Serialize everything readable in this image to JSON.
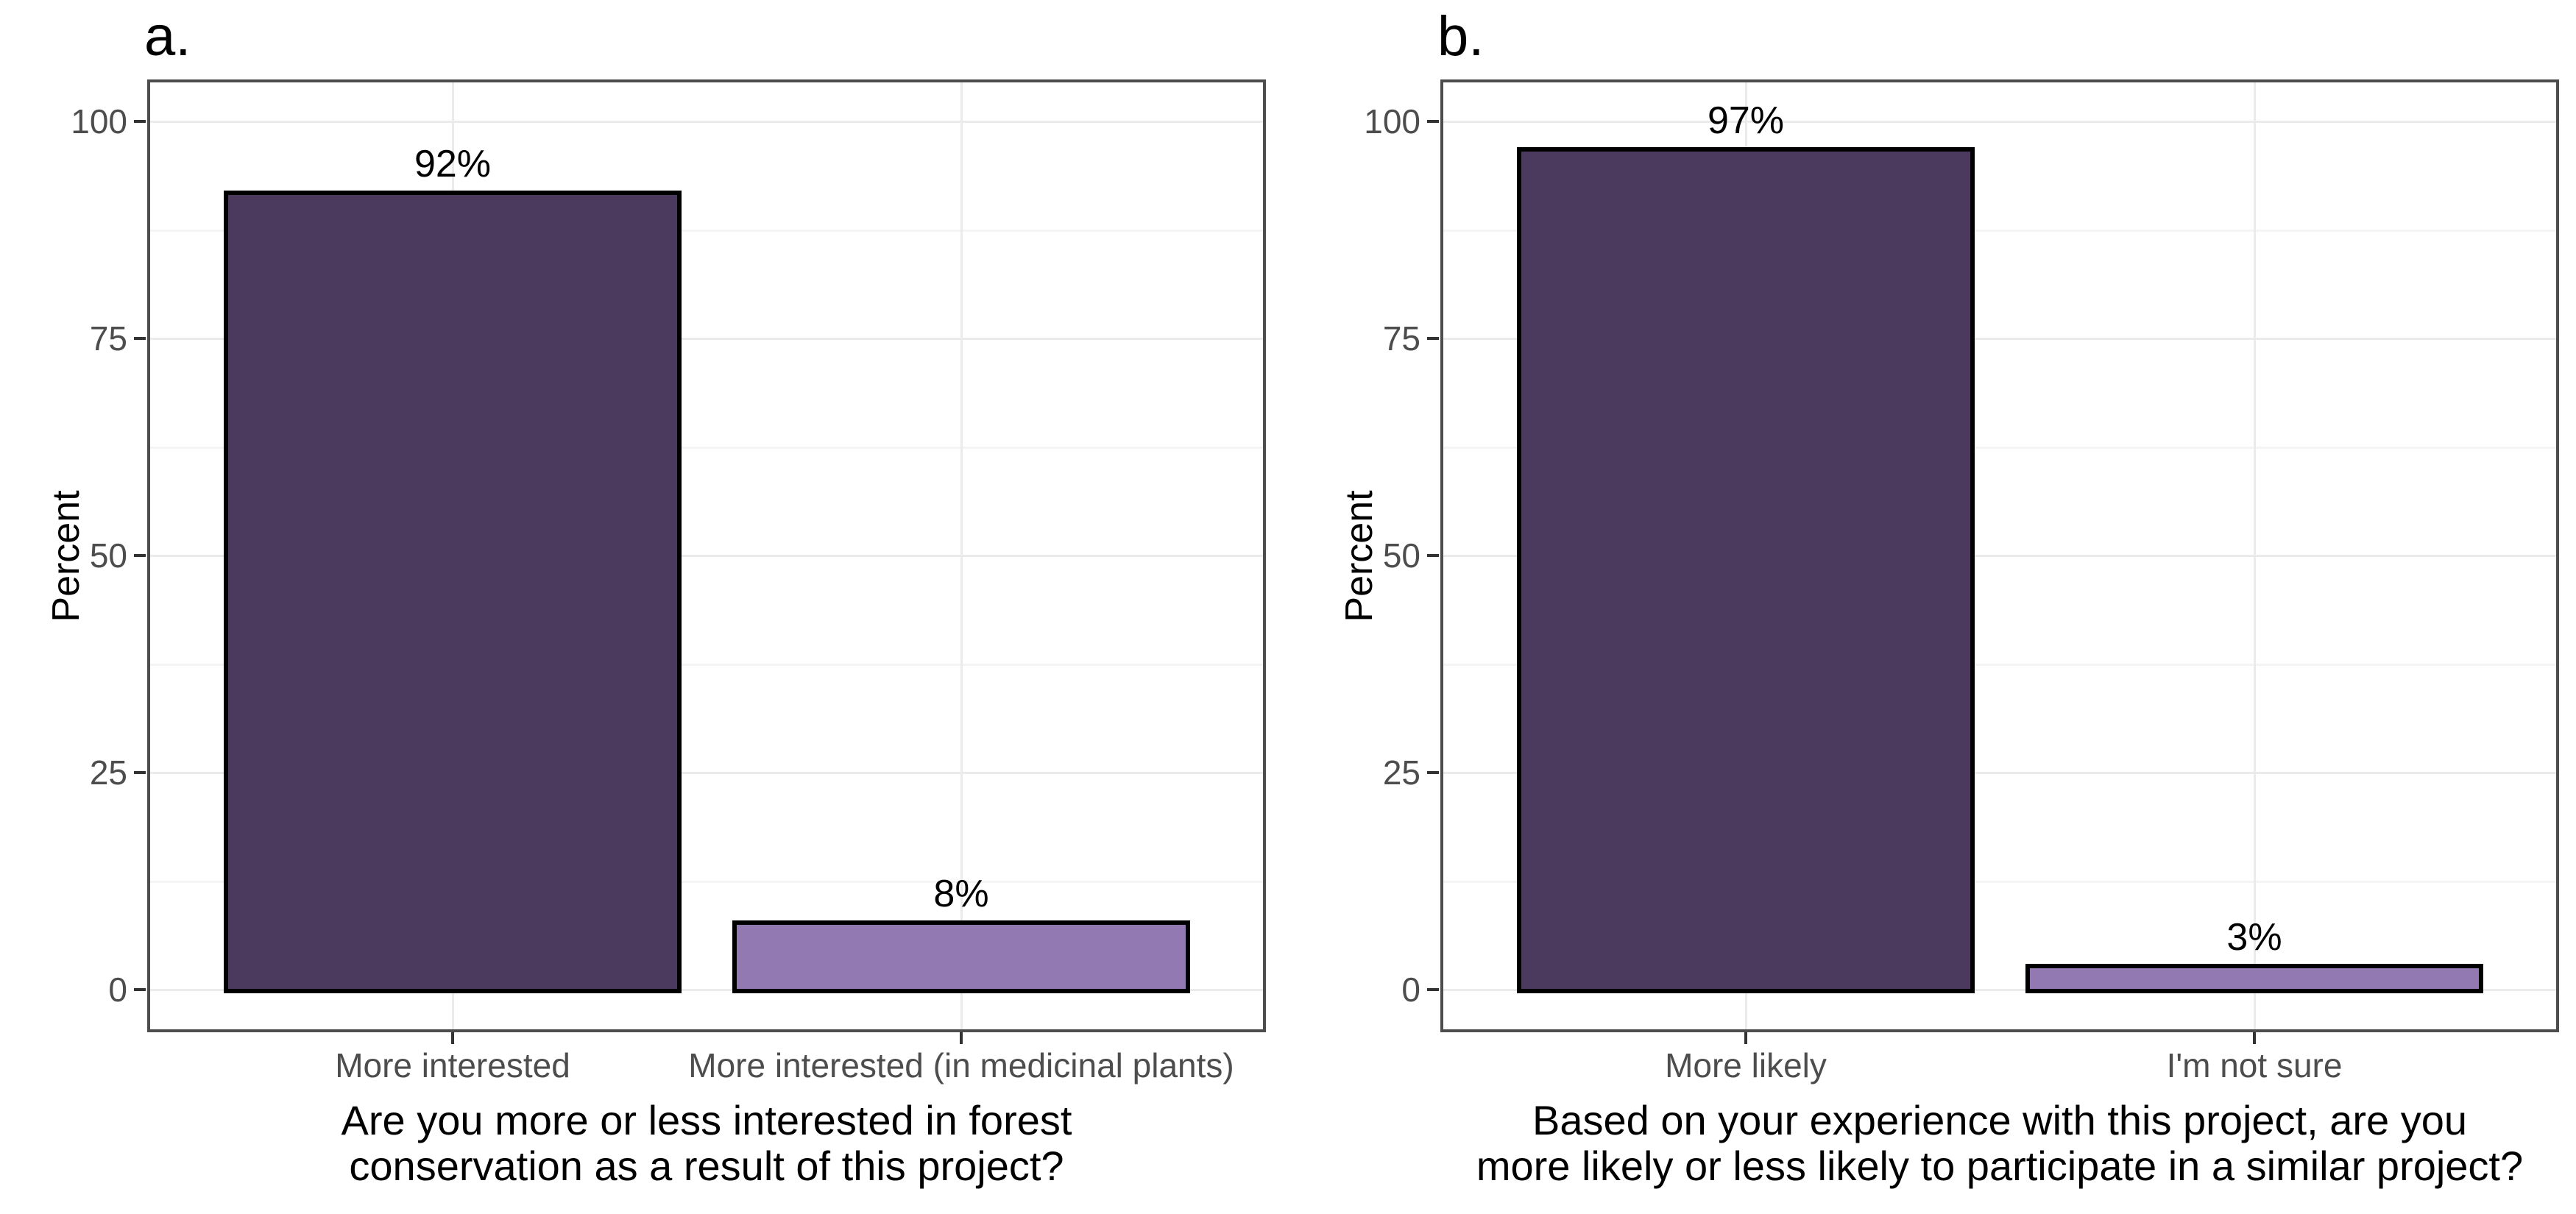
{
  "figure": {
    "background_color": "#ffffff",
    "panel_border_color": "#4d4d4d",
    "bar_outline_color": "#000000",
    "gridline_major_color": "#ebebeb",
    "gridline_minor_color": "#f4f4f4",
    "tick_label_color": "#4d4d4d",
    "text_color": "#000000"
  },
  "chart_data": [
    {
      "type": "bar",
      "tag": "a.",
      "categories": [
        "More interested",
        "More interested (in medicinal plants)"
      ],
      "values": [
        92,
        8
      ],
      "value_labels": [
        "92%",
        "8%"
      ],
      "bar_colors": [
        "#4B3A5D",
        "#9379B2"
      ],
      "xlabel_lines": [
        "Are you more or less interested in forest",
        "conservation as a result of this project?"
      ],
      "ylabel": "Percent",
      "yticks": [
        0,
        25,
        50,
        75,
        100
      ],
      "yticks_minor": [
        12.5,
        37.5,
        62.5,
        87.5
      ],
      "ylim": [
        -5,
        105
      ],
      "grid": "major-and-minor-horizontal, vertical-at-categories",
      "legend": "none"
    },
    {
      "type": "bar",
      "tag": "b.",
      "categories": [
        "More likely",
        "I'm not sure"
      ],
      "values": [
        97,
        3
      ],
      "value_labels": [
        "97%",
        "3%"
      ],
      "bar_colors": [
        "#4B3A5D",
        "#9379B2"
      ],
      "xlabel_lines": [
        "Based on your experience with this project, are you",
        "more likely or less likely to participate in a similar project?"
      ],
      "ylabel": "Percent",
      "yticks": [
        0,
        25,
        50,
        75,
        100
      ],
      "yticks_minor": [
        12.5,
        37.5,
        62.5,
        87.5
      ],
      "ylim": [
        -5,
        105
      ],
      "grid": "major-and-minor-horizontal, vertical-at-categories",
      "legend": "none"
    }
  ]
}
